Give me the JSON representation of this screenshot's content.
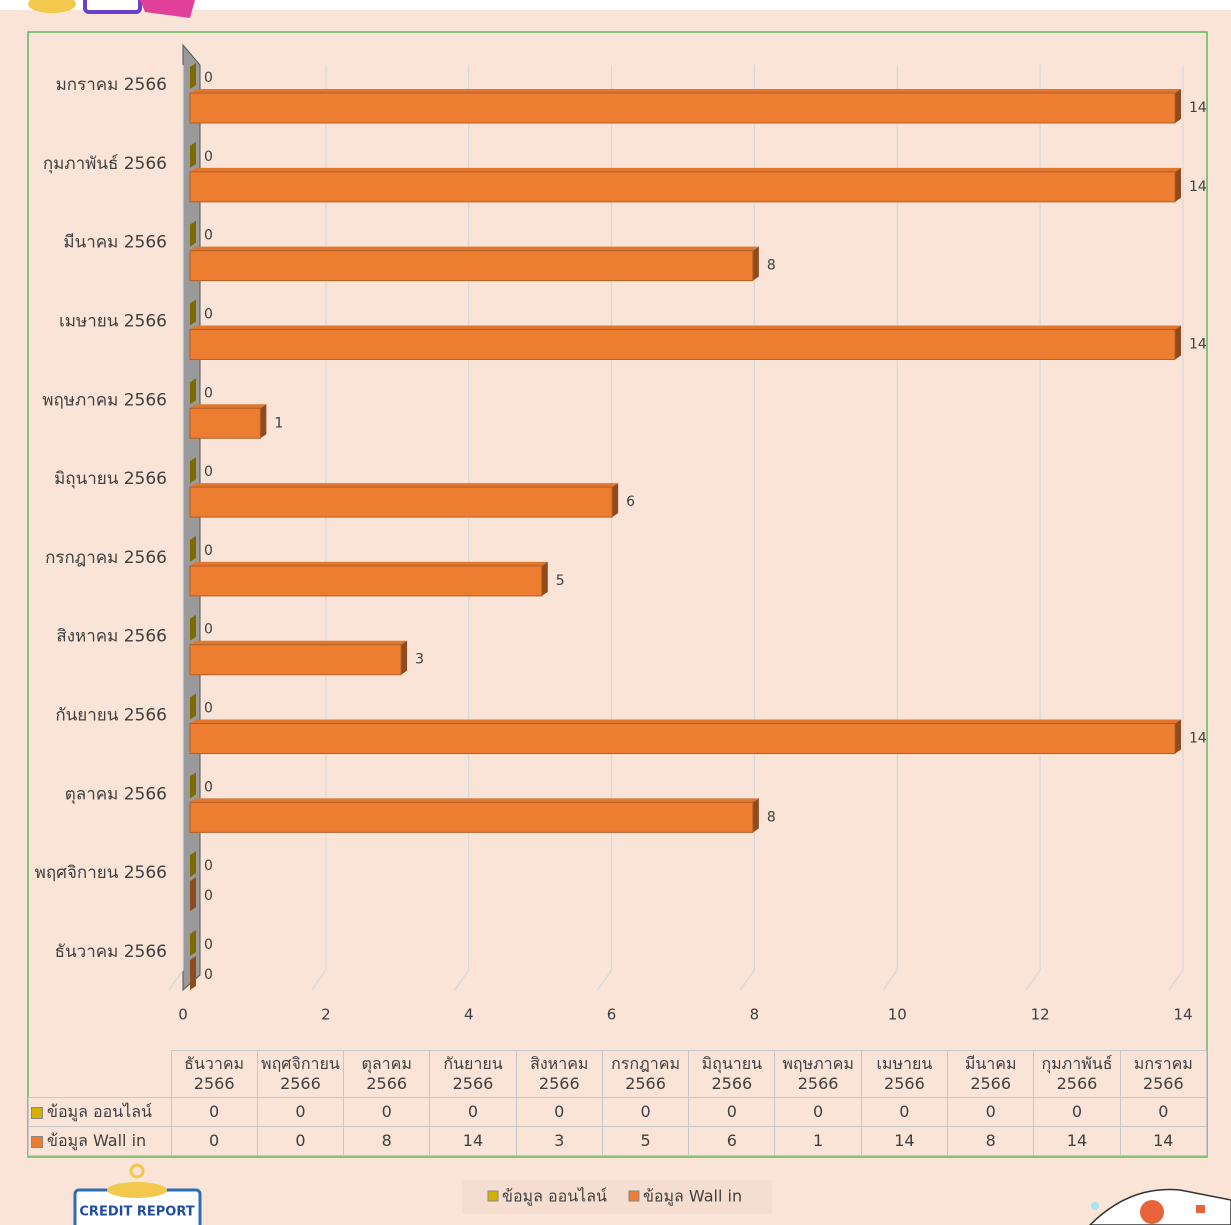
{
  "chart_data": {
    "type": "bar",
    "orientation": "horizontal",
    "categories": [
      "ธันวาคม 2566",
      "พฤศจิกายน 2566",
      "ตุลาคม 2566",
      "กันยายน 2566",
      "สิงหาคม 2566",
      "กรกฎาคม 2566",
      "มิถุนายน 2566",
      "พฤษภาคม 2566",
      "เมษายน 2566",
      "มีนาคม 2566",
      "กุมภาพันธ์ 2566",
      "มกราคม 2566"
    ],
    "series": [
      {
        "name": "ข้อมูล ออนไลน์",
        "color": "#d4b000",
        "values": [
          0,
          0,
          0,
          0,
          0,
          0,
          0,
          0,
          0,
          0,
          0,
          0
        ]
      },
      {
        "name": "ข้อมูล Wall in",
        "color": "#ed7d31",
        "values": [
          0,
          0,
          8,
          14,
          3,
          5,
          6,
          1,
          14,
          8,
          14,
          14
        ]
      }
    ],
    "xlim": [
      0,
      14
    ],
    "xticks": [
      0,
      2,
      4,
      6,
      8,
      10,
      12,
      14
    ],
    "grid": true,
    "legend": "bottom",
    "data_table": true
  },
  "badge_text": "CREDIT REPORT"
}
